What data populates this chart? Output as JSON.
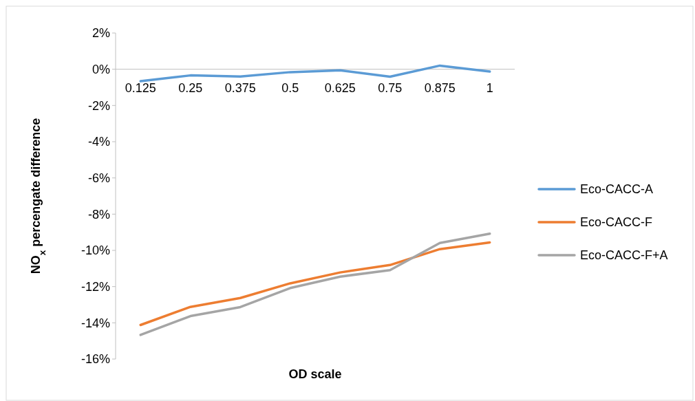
{
  "chart_data": {
    "type": "line",
    "xlabel": "OD scale",
    "ylabel": "NO$_{x}$ percengate difference",
    "categories": [
      "0.125",
      "0.25",
      "0.375",
      "0.5",
      "0.625",
      "0.75",
      "0.875",
      "1"
    ],
    "series": [
      {
        "name": "Eco-CACC-A",
        "color": "#5b9bd5",
        "values": [
          -0.66,
          -0.34,
          -0.4,
          -0.16,
          -0.06,
          -0.41,
          0.2,
          -0.13
        ]
      },
      {
        "name": "Eco-CACC-F",
        "color": "#ed7d31",
        "values": [
          -14.12,
          -13.12,
          -12.63,
          -11.82,
          -11.22,
          -10.81,
          -9.93,
          -9.56
        ]
      },
      {
        "name": "Eco-CACC-F+A",
        "color": "#a5a5a5",
        "values": [
          -14.67,
          -13.63,
          -13.13,
          -12.08,
          -11.45,
          -11.09,
          -9.59,
          -9.08
        ]
      }
    ],
    "ylim": [
      -16,
      2
    ],
    "yticks": [
      {
        "value": 2,
        "label": "2%"
      },
      {
        "value": 0,
        "label": "0%"
      },
      {
        "value": -2,
        "label": "-2%"
      },
      {
        "value": -4,
        "label": "-4%"
      },
      {
        "value": -6,
        "label": "-6%"
      },
      {
        "value": -8,
        "label": "-8%"
      },
      {
        "value": -10,
        "label": "-10%"
      },
      {
        "value": -12,
        "label": "-12%"
      },
      {
        "value": -14,
        "label": "-14%"
      },
      {
        "value": -16,
        "label": "-16%"
      }
    ],
    "grid": false,
    "legend": "right",
    "marker": "none",
    "line_style": "solid"
  }
}
